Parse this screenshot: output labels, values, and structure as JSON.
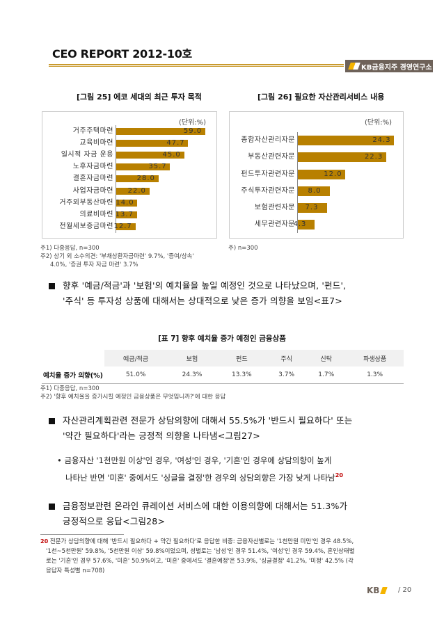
{
  "header": {
    "report_title": "CEO REPORT 2012-10호",
    "brand": "KB금융지주 경영연구소"
  },
  "figure25": {
    "title": "[그림 25]  에코 세대의 최근 투자 목적",
    "unit": "(단위:%)",
    "notes": [
      "주1) 다중응답, n=300",
      "주2) 상기 외 소수의견: '부채상환자금마련' 9.7%, '증여/상속'",
      "4.0%, '증권 투자 자금 마련' 3.7%"
    ]
  },
  "figure26": {
    "title": "[그림 26]  필요한 자산관리서비스 내용",
    "unit": "(단위:%)",
    "notes": [
      "주) n=300"
    ]
  },
  "chart_data": [
    {
      "type": "bar",
      "orientation": "horizontal",
      "title": "[그림 25] 에코 세대의 최근 투자 목적",
      "unit": "(단위:%)",
      "categories": [
        "거주주택마련",
        "교육비마련",
        "일시적 자금 운용",
        "노후자금마련",
        "결혼자금마련",
        "사업자금마련",
        "거주외부동산마련",
        "의료비마련",
        "전월세보증금마련"
      ],
      "values": [
        59.0,
        47.7,
        45.0,
        35.7,
        28.0,
        22.0,
        14.0,
        13.7,
        12.7
      ],
      "labels": [
        "59.0",
        "47.7",
        "45.0",
        "35.7",
        "28.0",
        "22.0",
        "14.0",
        "13.7",
        "12.7"
      ],
      "xlim": [
        0,
        60
      ],
      "color": "#b88000"
    },
    {
      "type": "bar",
      "orientation": "horizontal",
      "title": "[그림 26] 필요한 자산관리서비스 내용",
      "unit": "(단위:%)",
      "categories": [
        "종합자산관리자문",
        "부동산관련자문",
        "펀드투자관련자문",
        "주식투자관련자문",
        "보험관련자문",
        "세무관련자문"
      ],
      "values": [
        24.3,
        22.3,
        12.0,
        8.0,
        7.3,
        4.3
      ],
      "labels": [
        "24.3",
        "22.3",
        "12.0",
        "8.0",
        "7.3",
        "4.3"
      ],
      "xlim": [
        0,
        26
      ],
      "color": "#b88000"
    }
  ],
  "para1": {
    "line1": "향후 '예금/적금'과 '보험'의 예치율을 높일 예정인 것으로 나타났으며, '펀드',",
    "line2": "'주식' 등 투자성 상품에 대해서는 상대적으로 낮은 증가 의향을 보임<표7>"
  },
  "table7": {
    "title": "[표 7]  향후 예치율 증가 예정인 금융상품",
    "headers": [
      "예금/적금",
      "보험",
      "펀드",
      "주식",
      "신탁",
      "파생상품"
    ],
    "row_label": "예치율 증가 의향(%)",
    "values": [
      "51.0%",
      "24.3%",
      "13.3%",
      "3.7%",
      "1.7%",
      "1.3%"
    ],
    "notes": [
      "주1) 다중응답, n=300",
      "주2) '향후 예치율을 증가시킬 예정인 금융상품은 무엇입니까?'에 대한 응답"
    ]
  },
  "para2": {
    "line1": "자산관리계획관련 전문가 상담의향에 대해서 55.5%가 '반드시 필요하다' 또는",
    "line2": "'약간 필요하다'라는 긍정적 의향을 나타냄<그림27>"
  },
  "para3": {
    "line1": "금융자산 '1천만원 이상'인 경우, '여성'인 경우, '기혼'인 경우에 상담의향이 높게",
    "line2": "나타난 반면 '미혼' 중에서도 '싱글을 결정'한 경우의 상담의향은 가장 낮게 나타남",
    "footnote_ref": "20"
  },
  "para4": {
    "line1": "금융정보관련 온라인 큐레이션 서비스에 대한 이용의향에 대해서는 51.3%가",
    "line2": "긍정적으로 응답<그림28>"
  },
  "footnote": {
    "mark": "20",
    "line1": "전문가 상담의향에 대해 '반드시 필요하다 + 약간 필요하다'로 응답한 비중: 금융자산별로는 '1천만원 미만'인 경우 48.5%,",
    "line2": "'1천~5천만원' 59.8%, '5천만원 이상' 59.8%이었으며, 성별로는 '남성'인 경우 51.4%, '여성'인 경우 59.4%, 혼인상태별",
    "line3": "로는 '기혼'인 경우 57.6%, '미혼' 50.9%이고, '미혼' 중에서도 '결혼예정'은 53.9%, '싱글결정' 41.2%, '미정' 42.5% (각",
    "line4": "응답자 특성별 n=708)"
  },
  "footer": {
    "logo": "KB",
    "page": "/ 20"
  }
}
